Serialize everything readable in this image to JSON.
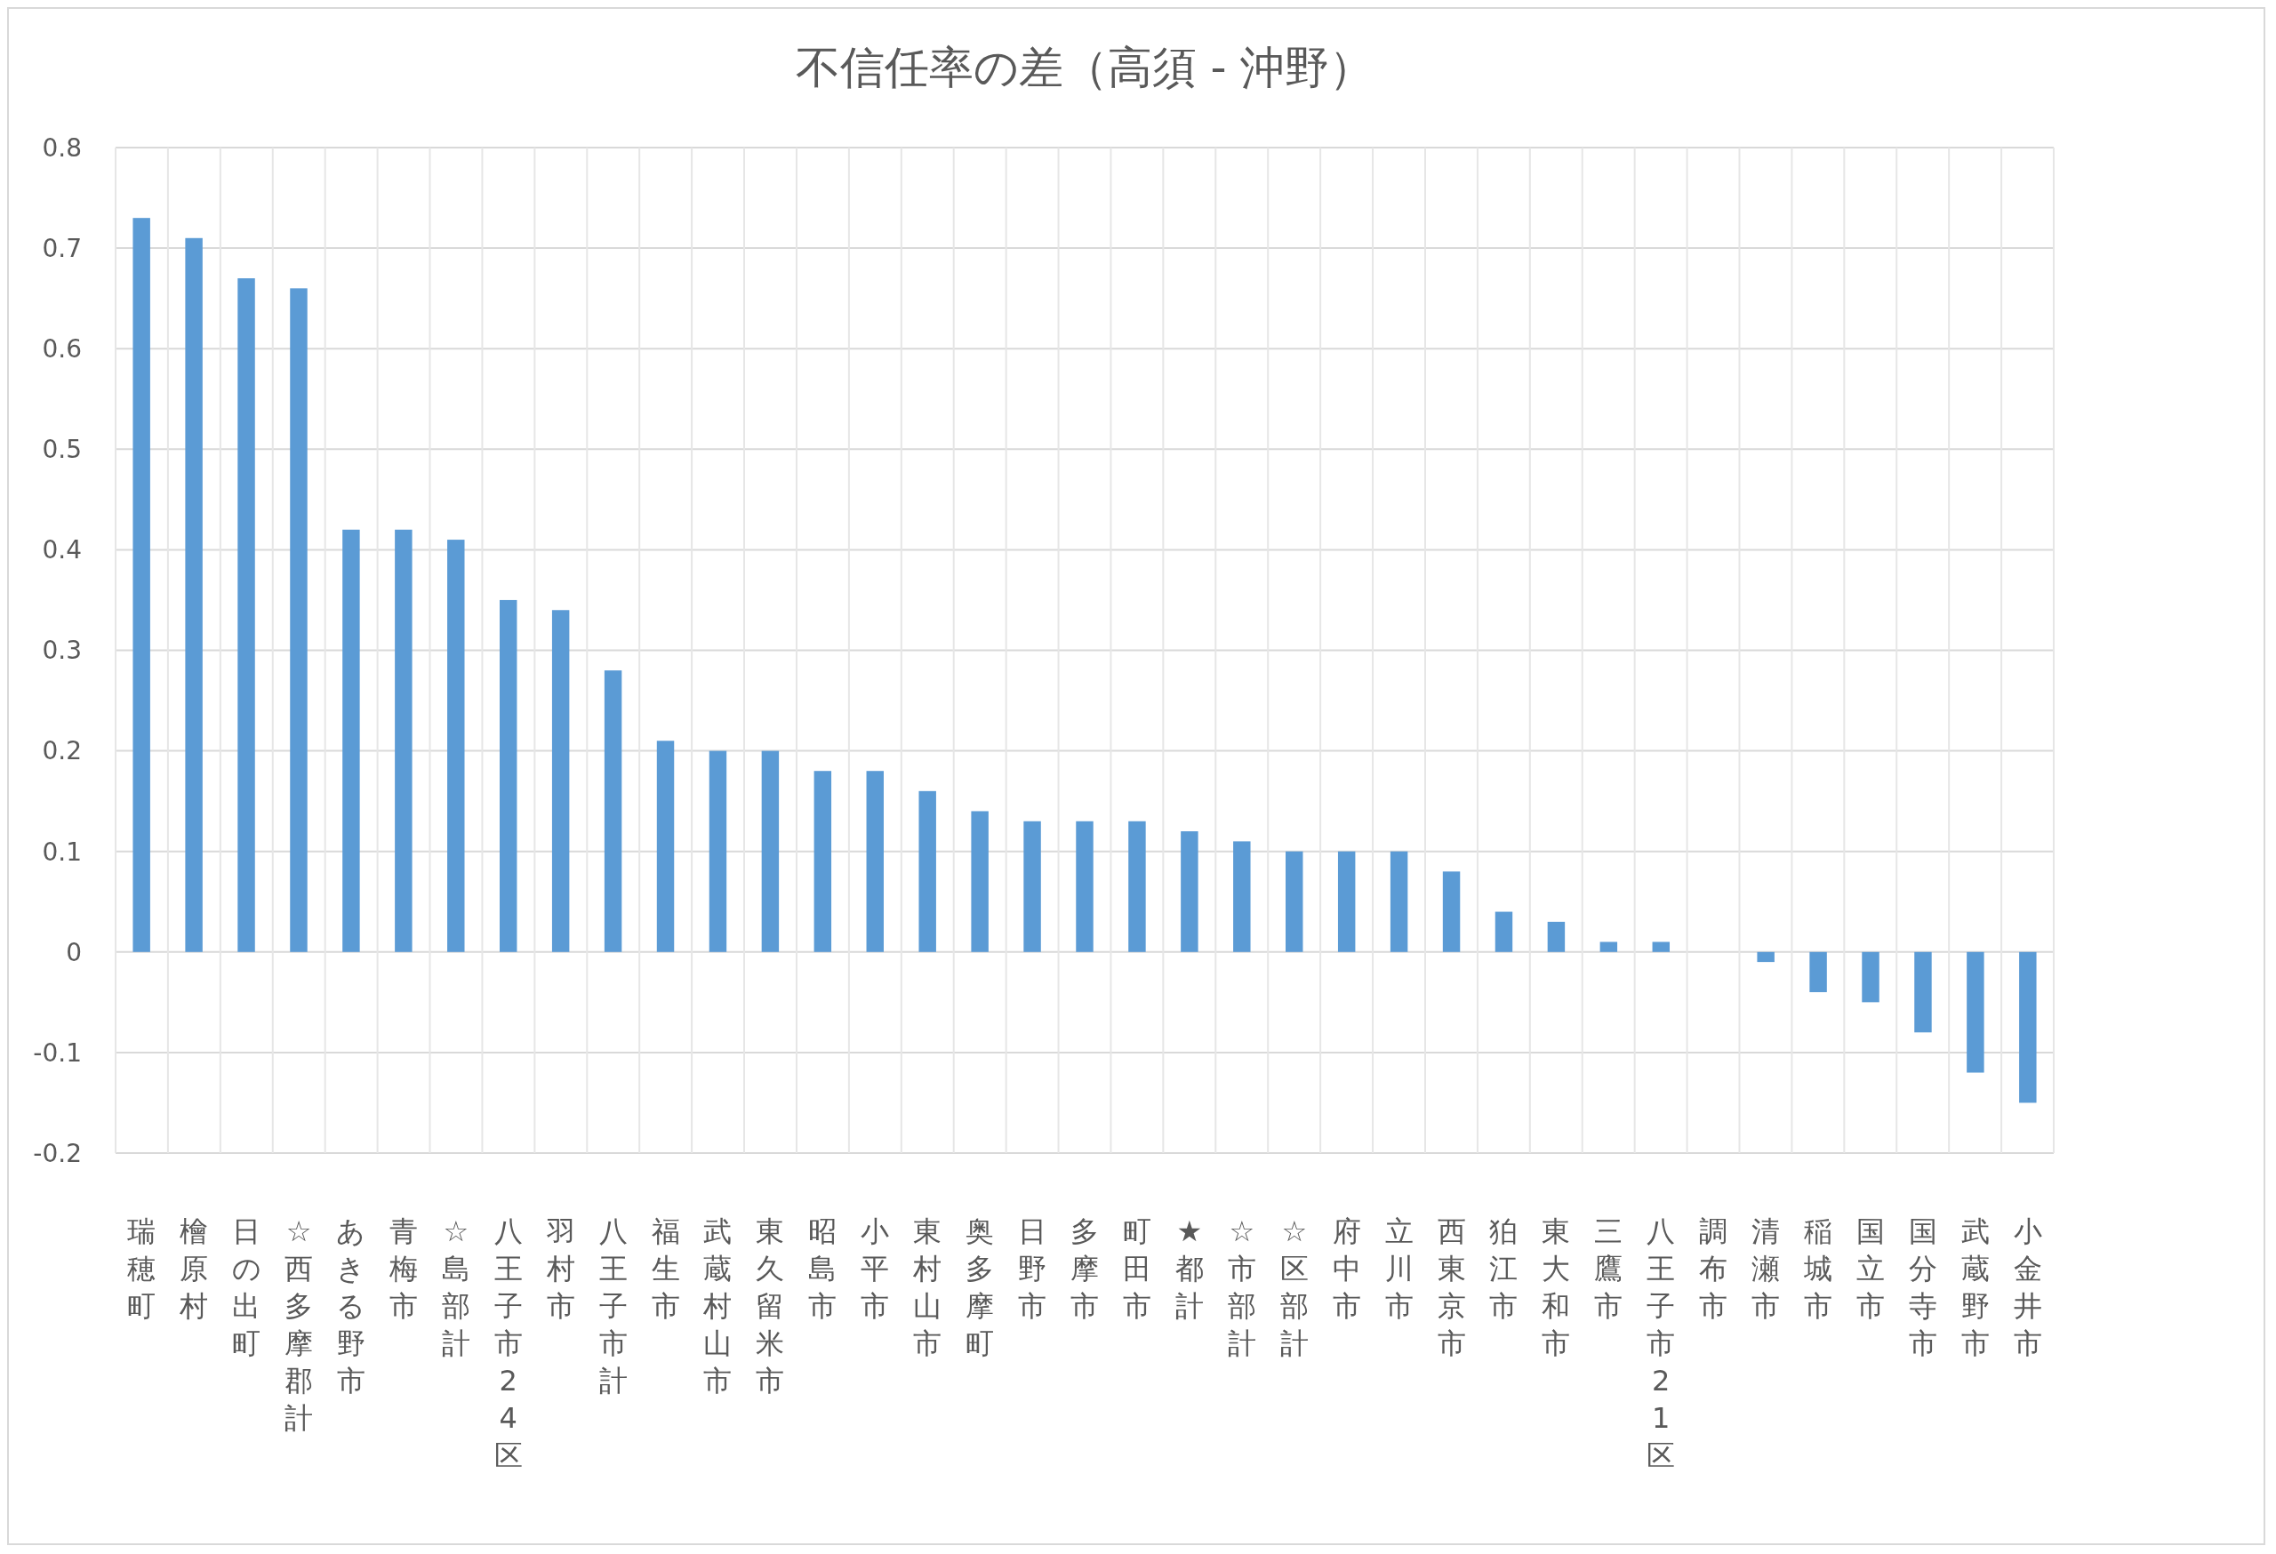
{
  "chart_data": {
    "type": "bar",
    "title": "不信任率の差（高須 - 沖野）",
    "categories": [
      "瑞穂町",
      "檜原村",
      "日の出町",
      "☆西多摩郡計",
      "あきる野市",
      "青梅市",
      "☆島部計",
      "八王子市24区",
      "羽村市",
      "八王子市計",
      "福生市",
      "武蔵村山市",
      "東久留米市",
      "昭島市",
      "小平市",
      "東村山市",
      "奥多摩町",
      "日野市",
      "多摩市",
      "町田市",
      "★都計",
      "☆市部計",
      "☆区部計",
      "府中市",
      "立川市",
      "西東京市",
      "狛江市",
      "東大和市",
      "三鷹市",
      "八王子市21区",
      "調布市",
      "清瀬市",
      "稲城市",
      "国立市",
      "国分寺市",
      "武蔵野市",
      "小金井市"
    ],
    "values": [
      0.73,
      0.71,
      0.67,
      0.66,
      0.42,
      0.42,
      0.41,
      0.35,
      0.34,
      0.28,
      0.21,
      0.2,
      0.2,
      0.18,
      0.18,
      0.16,
      0.14,
      0.13,
      0.13,
      0.13,
      0.12,
      0.11,
      0.1,
      0.1,
      0.1,
      0.08,
      0.04,
      0.03,
      0.01,
      0.01,
      0,
      -0.01,
      -0.04,
      -0.05,
      -0.08,
      -0.12,
      -0.15
    ],
    "color": "#5b9bd5",
    "ylim": [
      -0.2,
      0.8
    ],
    "yticks": [
      -0.2,
      -0.1,
      0,
      0.1,
      0.2,
      0.3,
      0.4,
      0.5,
      0.6,
      0.7,
      0.8
    ],
    "grid": true
  }
}
